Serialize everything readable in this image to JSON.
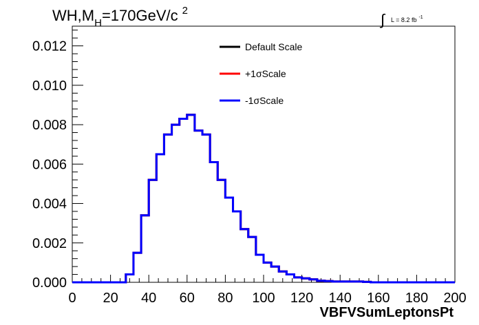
{
  "chart_data": {
    "type": "line",
    "title": {
      "prefix": "WH,M",
      "subscript": "H",
      "rest": "=170GeV/c",
      "superscript": "2"
    },
    "lumi": {
      "symbol": "∫",
      "text": "L = 8.2 fb",
      "superscript": "-1"
    },
    "xlabel": "VBFVSumLeptonsPt",
    "ylabel": "",
    "xlim": [
      0,
      200
    ],
    "ylim": [
      0,
      0.013
    ],
    "x_ticks": [
      0,
      20,
      40,
      60,
      80,
      100,
      120,
      140,
      160,
      180,
      200
    ],
    "y_ticks": [
      0.0,
      0.002,
      0.004,
      0.006,
      0.008,
      0.01,
      0.012
    ],
    "x_tick_labels": [
      "0",
      "20",
      "40",
      "60",
      "80",
      "100",
      "120",
      "140",
      "160",
      "180",
      "200"
    ],
    "y_tick_labels": [
      "0.000",
      "0.002",
      "0.004",
      "0.006",
      "0.008",
      "0.010",
      "0.012"
    ],
    "bin_edges": [
      0,
      4,
      8,
      12,
      16,
      20,
      24,
      28,
      32,
      36,
      40,
      44,
      48,
      52,
      56,
      60,
      64,
      68,
      72,
      76,
      80,
      84,
      88,
      92,
      96,
      100,
      104,
      108,
      112,
      116,
      120,
      124,
      128,
      132,
      136,
      140,
      144,
      148,
      152,
      156,
      160,
      164,
      168,
      172,
      176,
      180,
      184,
      188,
      192,
      196,
      200
    ],
    "series": [
      {
        "name": "Default Scale",
        "color": "#000000",
        "values": [
          0,
          0,
          0,
          0,
          0,
          0,
          0,
          0.0004,
          0.0015,
          0.0034,
          0.0052,
          0.0065,
          0.0075,
          0.008,
          0.0083,
          0.0085,
          0.0077,
          0.0075,
          0.0061,
          0.0052,
          0.0043,
          0.0036,
          0.0027,
          0.0023,
          0.0014,
          0.001,
          0.0008,
          0.00055,
          0.0004,
          0.00025,
          0.0002,
          0.00015,
          8e-05,
          6e-05,
          4e-05,
          4e-05,
          4e-05,
          4e-05,
          2e-05,
          0,
          0,
          0,
          0,
          0,
          0,
          0,
          0,
          0,
          0,
          0
        ]
      },
      {
        "name": "+1σScale",
        "color": "#ff0000",
        "values": [
          0,
          0,
          0,
          0,
          0,
          0,
          0,
          0.0004,
          0.0015,
          0.0034,
          0.0052,
          0.0065,
          0.0075,
          0.008,
          0.0083,
          0.0085,
          0.0077,
          0.0075,
          0.0061,
          0.0052,
          0.0043,
          0.0036,
          0.0027,
          0.0023,
          0.0014,
          0.001,
          0.0008,
          0.00055,
          0.0004,
          0.00025,
          0.0002,
          0.00015,
          8e-05,
          6e-05,
          4e-05,
          4e-05,
          4e-05,
          4e-05,
          2e-05,
          0,
          0,
          0,
          0,
          0,
          0,
          0,
          0,
          0,
          0,
          0
        ]
      },
      {
        "name": "-1σScale",
        "color": "#0000ff",
        "values": [
          0,
          0,
          0,
          0,
          0,
          0,
          0,
          0.0004,
          0.0015,
          0.0034,
          0.0052,
          0.0065,
          0.0075,
          0.008,
          0.0083,
          0.0085,
          0.0077,
          0.0075,
          0.0061,
          0.0052,
          0.0043,
          0.0036,
          0.0027,
          0.0023,
          0.0014,
          0.001,
          0.0008,
          0.00055,
          0.0004,
          0.00025,
          0.0002,
          0.00015,
          8e-05,
          6e-05,
          4e-05,
          4e-05,
          4e-05,
          4e-05,
          2e-05,
          0,
          0,
          0,
          0,
          0,
          0,
          0,
          0,
          0,
          0,
          0
        ]
      }
    ],
    "legend_placement": "top-center",
    "grid": false
  }
}
